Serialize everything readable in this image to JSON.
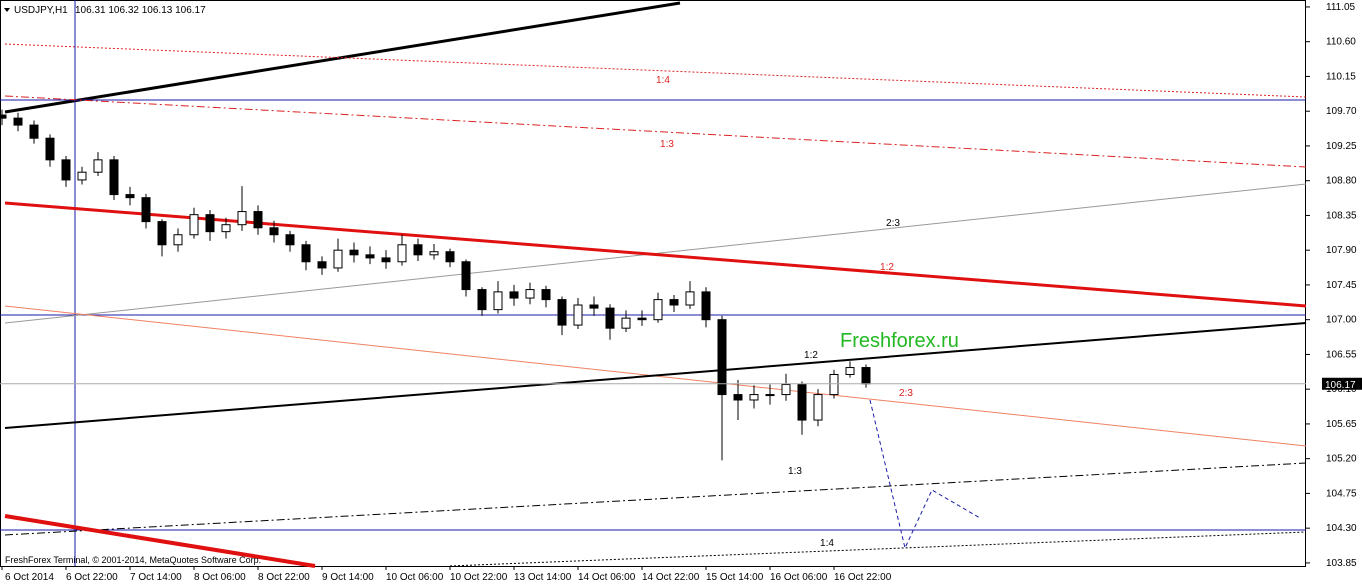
{
  "chart_data": {
    "type": "candlestick",
    "title": "USDJPY,H1",
    "ohlc_text": "106.31 106.32 106.13 106.17",
    "watermark": "Freshforex.ru",
    "footer": "FreshForex Terminal, © 2001-2014, MetaQuotes Software Corp.",
    "current_price": 106.17,
    "annotations": [
      "1:4",
      "1:3",
      "2:3",
      "1:2",
      "1:2",
      "2:3",
      "1:3",
      "1:4"
    ],
    "x": [
      0,
      4,
      8,
      12,
      16,
      20,
      24,
      28,
      32,
      36,
      40,
      44,
      48,
      52,
      56,
      60,
      64,
      68,
      72,
      76,
      80,
      84,
      88,
      92,
      96,
      100,
      104,
      108,
      112,
      116,
      120,
      124,
      128,
      132,
      136,
      140,
      144,
      148,
      152,
      156,
      160,
      164,
      168,
      172,
      176,
      180,
      184,
      188,
      192,
      196,
      200,
      204,
      208,
      212,
      216
    ],
    "open": [
      109.65,
      109.61,
      109.52,
      109.35,
      109.07,
      108.81,
      108.91,
      109.07,
      108.62,
      108.58,
      108.27,
      107.97,
      108.1,
      108.36,
      108.14,
      108.23,
      108.4,
      108.19,
      108.1,
      107.97,
      107.75,
      107.67,
      107.9,
      107.84,
      107.8,
      107.75,
      107.97,
      107.84,
      107.88,
      107.75,
      107.39,
      107.13,
      107.36,
      107.28,
      107.39,
      107.26,
      106.93,
      107.19,
      107.15,
      106.89,
      107.02,
      107.0,
      107.26,
      107.19,
      107.36,
      107.0,
      106.03,
      105.96,
      106.03,
      106.03,
      106.16,
      105.7,
      106.03,
      106.29,
      106.38
    ],
    "high": [
      109.72,
      109.68,
      109.58,
      109.4,
      109.12,
      108.98,
      109.17,
      109.12,
      108.72,
      108.63,
      108.3,
      108.18,
      108.45,
      108.42,
      108.32,
      108.73,
      108.48,
      108.28,
      108.15,
      108.02,
      107.82,
      108.05,
      108.0,
      107.95,
      107.9,
      108.1,
      108.05,
      107.98,
      107.92,
      107.78,
      107.42,
      107.5,
      107.45,
      107.48,
      107.44,
      107.3,
      107.28,
      107.3,
      107.2,
      107.12,
      107.12,
      107.35,
      107.32,
      107.5,
      107.42,
      107.05,
      106.22,
      106.15,
      106.16,
      106.3,
      106.2,
      106.1,
      106.35,
      106.46,
      106.42
    ],
    "low": [
      109.52,
      109.44,
      109.28,
      108.98,
      108.72,
      108.75,
      108.86,
      108.55,
      108.48,
      108.18,
      107.82,
      107.88,
      108.05,
      108.02,
      108.05,
      108.15,
      108.1,
      108.0,
      107.88,
      107.64,
      107.58,
      107.62,
      107.74,
      107.72,
      107.66,
      107.7,
      107.76,
      107.78,
      107.68,
      107.3,
      107.05,
      107.08,
      107.18,
      107.2,
      107.16,
      106.8,
      106.88,
      107.05,
      106.74,
      106.84,
      106.92,
      106.96,
      107.1,
      107.14,
      106.9,
      105.18,
      105.7,
      105.85,
      105.9,
      105.95,
      105.51,
      105.62,
      105.98,
      106.25,
      106.12
    ],
    "close": [
      109.61,
      109.52,
      109.35,
      109.07,
      108.81,
      108.91,
      109.07,
      108.62,
      108.58,
      108.27,
      107.97,
      108.1,
      108.36,
      108.14,
      108.23,
      108.4,
      108.19,
      108.1,
      107.97,
      107.75,
      107.67,
      107.9,
      107.84,
      107.8,
      107.75,
      107.97,
      107.84,
      107.88,
      107.75,
      107.39,
      107.13,
      107.36,
      107.28,
      107.39,
      107.26,
      106.93,
      107.19,
      107.15,
      106.89,
      107.02,
      107.0,
      107.26,
      107.19,
      107.36,
      107.0,
      106.03,
      105.96,
      106.03,
      106.03,
      106.16,
      105.7,
      106.03,
      106.29,
      106.38,
      106.17
    ],
    "xlim": [
      0,
      326
    ],
    "xticks": [
      {
        "value": 0,
        "label": "6 Oct 2014"
      },
      {
        "value": 16,
        "label": "6 Oct 22:00"
      },
      {
        "value": 32,
        "label": "7 Oct 14:00"
      },
      {
        "value": 48,
        "label": "8 Oct 06:00"
      },
      {
        "value": 64,
        "label": "8 Oct 22:00"
      },
      {
        "value": 80,
        "label": "9 Oct 14:00"
      },
      {
        "value": 96,
        "label": "10 Oct 06:00"
      },
      {
        "value": 112,
        "label": "10 Oct 22:00"
      },
      {
        "value": 128,
        "label": "13 Oct 14:00"
      },
      {
        "value": 144,
        "label": "14 Oct 06:00"
      },
      {
        "value": 160,
        "label": "14 Oct 22:00"
      },
      {
        "value": 176,
        "label": "15 Oct 14:00"
      },
      {
        "value": 192,
        "label": "16 Oct 06:00"
      },
      {
        "value": 208,
        "label": "16 Oct 22:00"
      }
    ],
    "ylim": [
      103.81,
      111.14
    ],
    "yticks": [
      {
        "value": 111.05,
        "label": "111.05"
      },
      {
        "value": 110.6,
        "label": "110.60"
      },
      {
        "value": 110.15,
        "label": "110.15"
      },
      {
        "value": 109.7,
        "label": "109.70"
      },
      {
        "value": 109.25,
        "label": "109.25"
      },
      {
        "value": 108.8,
        "label": "108.80"
      },
      {
        "value": 108.35,
        "label": "108.35"
      },
      {
        "value": 107.9,
        "label": "107.90"
      },
      {
        "value": 107.45,
        "label": "107.45"
      },
      {
        "value": 107.0,
        "label": "107.00"
      },
      {
        "value": 106.55,
        "label": "106.55"
      },
      {
        "value": 106.1,
        "label": "106.10"
      },
      {
        "value": 105.65,
        "label": "105.65"
      },
      {
        "value": 105.2,
        "label": "105.20"
      },
      {
        "value": 104.75,
        "label": "104.75"
      },
      {
        "value": 104.3,
        "label": "104.30"
      },
      {
        "value": 103.85,
        "label": "103.85"
      }
    ],
    "up_color": "#ffffff",
    "down_color": "#000000"
  }
}
